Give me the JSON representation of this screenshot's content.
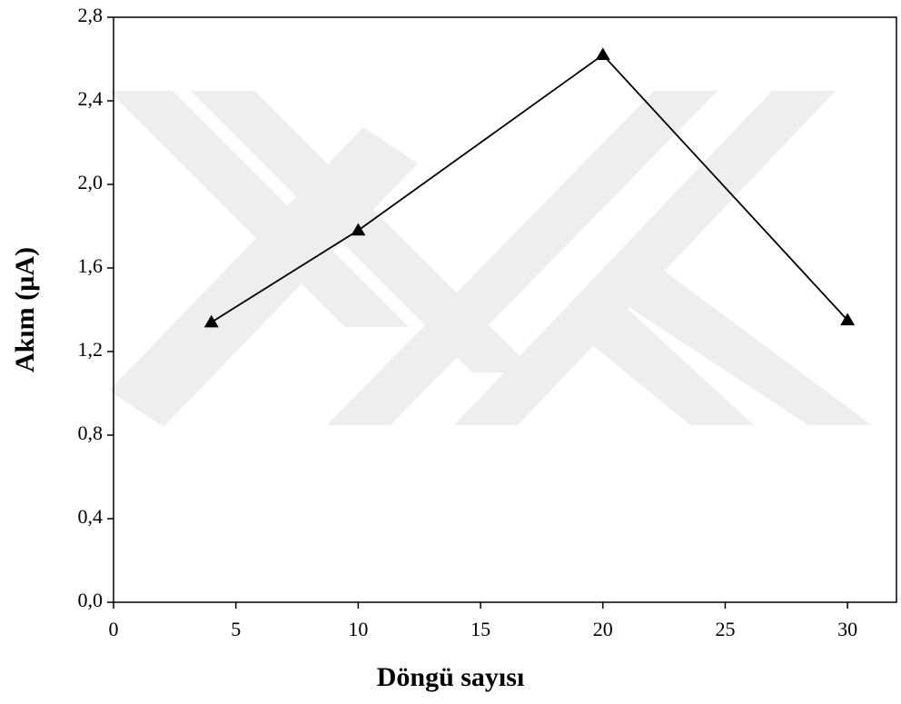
{
  "chart_data": {
    "type": "line",
    "xlabel": "Döngü sayısı",
    "ylabel": "Akım (µA)",
    "x": [
      4,
      10,
      20,
      30
    ],
    "values": [
      1.34,
      1.78,
      2.62,
      1.35
    ],
    "color": "#000000",
    "marker": "triangle",
    "xlim": [
      0,
      32
    ],
    "xticks": [
      0,
      5,
      10,
      15,
      20,
      25,
      30
    ],
    "ylim": [
      0,
      2.8
    ],
    "yticks": [
      {
        "value": 0,
        "label": "0,0"
      },
      {
        "value": 0.4,
        "label": "0,4"
      },
      {
        "value": 0.8,
        "label": "0,8"
      },
      {
        "value": 1.2,
        "label": "1,2"
      },
      {
        "value": 1.6,
        "label": "1,6"
      },
      {
        "value": 2.0,
        "label": "2,0"
      },
      {
        "value": 2.4,
        "label": "2,4"
      },
      {
        "value": 2.8,
        "label": "2,8"
      }
    ]
  }
}
